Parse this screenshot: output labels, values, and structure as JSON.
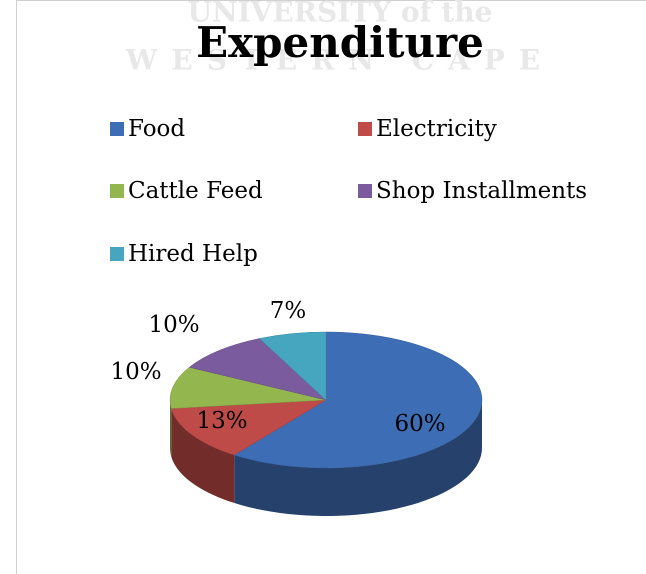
{
  "chart_data": {
    "type": "pie",
    "title": "Expenditure",
    "watermark": [
      "UNIVERSITY of the",
      "WESTERN CAPE"
    ],
    "categories": [
      "Food",
      "Electricity",
      "Cattle Feed",
      "Shop Installments",
      "Hired Help"
    ],
    "values": [
      60,
      13,
      10,
      10,
      7
    ],
    "value_labels": [
      "60%",
      "13%",
      "10%",
      "10%",
      "7%"
    ],
    "colors": [
      "#3d6db4",
      "#be4b48",
      "#94b64e",
      "#7a5c9e",
      "#46a6c0"
    ],
    "legend": "top"
  }
}
